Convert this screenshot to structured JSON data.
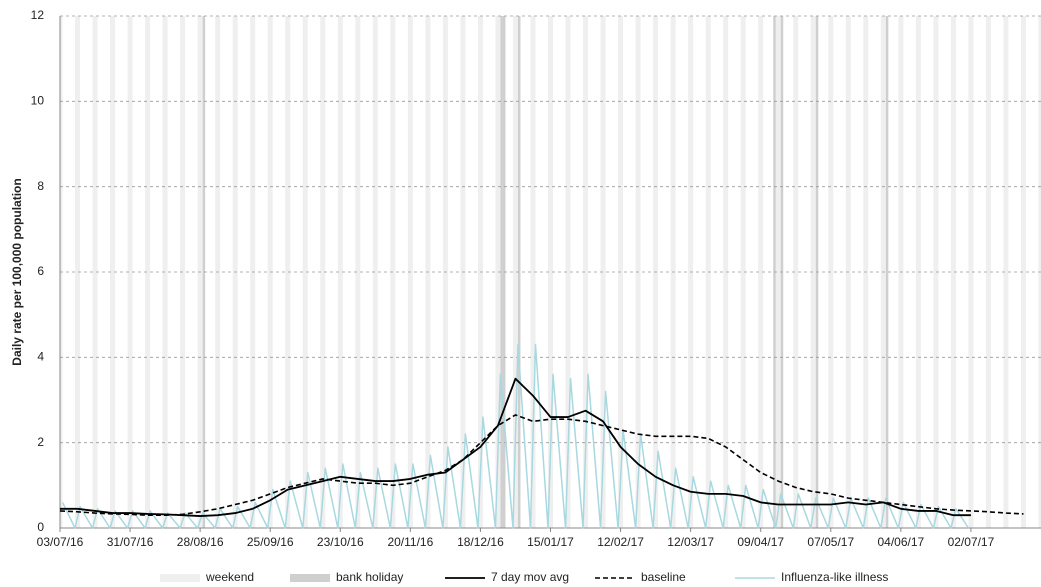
{
  "chart_data": {
    "type": "line",
    "y_label": "Daily rate per 100,000  population",
    "xlim": [
      "03/07/16",
      "30/07/17"
    ],
    "xticks": [
      "03/07/16",
      "31/07/16",
      "28/08/16",
      "25/09/16",
      "23/10/16",
      "20/11/16",
      "18/12/16",
      "15/01/17",
      "12/02/17",
      "12/03/17",
      "09/04/17",
      "07/05/17",
      "04/06/17",
      "02/07/17"
    ],
    "ylim": [
      0,
      12
    ],
    "yticks": [
      0,
      2,
      4,
      6,
      8,
      10,
      12
    ],
    "grid": true,
    "bands": {
      "weekend": {
        "name": "weekend",
        "color": "#efefef"
      },
      "bank_holiday": {
        "name": "bank holiday",
        "color": "#cfcfcf",
        "dates": [
          "29/08/16",
          "26/12/16",
          "27/12/16",
          "02/01/17",
          "14/04/17",
          "17/04/17",
          "01/05/17",
          "29/05/17"
        ]
      }
    },
    "x": [
      "03/07/16",
      "10/07/16",
      "17/07/16",
      "24/07/16",
      "31/07/16",
      "07/08/16",
      "14/08/16",
      "21/08/16",
      "28/08/16",
      "04/09/16",
      "11/09/16",
      "18/09/16",
      "25/09/16",
      "02/10/16",
      "09/10/16",
      "16/10/16",
      "23/10/16",
      "30/10/16",
      "06/11/16",
      "13/11/16",
      "20/11/16",
      "27/11/16",
      "04/12/16",
      "11/12/16",
      "18/12/16",
      "25/12/16",
      "01/01/17",
      "08/01/17",
      "15/01/17",
      "22/01/17",
      "29/01/17",
      "05/02/17",
      "12/02/17",
      "19/02/17",
      "26/02/17",
      "05/03/17",
      "12/03/17",
      "19/03/17",
      "26/03/17",
      "02/04/17",
      "09/04/17",
      "16/04/17",
      "23/04/17",
      "30/04/17",
      "07/05/17",
      "14/05/17",
      "21/05/17",
      "28/05/17",
      "04/06/17",
      "11/06/17",
      "18/06/17",
      "25/06/17",
      "02/07/17",
      "09/07/17",
      "16/07/17",
      "23/07/17"
    ],
    "series": [
      {
        "name": "Influenza-like illness",
        "color": "#a8d8e0",
        "style": "solid",
        "width": 1.5,
        "x": [
          "04/07/16",
          "09/07/16",
          "11/07/16",
          "16/07/16",
          "18/07/16",
          "23/07/16",
          "25/07/16",
          "30/07/16",
          "01/08/16",
          "06/08/16",
          "08/08/16",
          "13/08/16",
          "15/08/16",
          "20/08/16",
          "22/08/16",
          "27/08/16",
          "29/08/16",
          "03/09/16",
          "05/09/16",
          "10/09/16",
          "12/09/16",
          "17/09/16",
          "19/09/16",
          "24/09/16",
          "26/09/16",
          "01/10/16",
          "03/10/16",
          "08/10/16",
          "10/10/16",
          "15/10/16",
          "17/10/16",
          "22/10/16",
          "24/10/16",
          "29/10/16",
          "31/10/16",
          "05/11/16",
          "07/11/16",
          "12/11/16",
          "14/11/16",
          "19/11/16",
          "21/11/16",
          "26/11/16",
          "28/11/16",
          "03/12/16",
          "05/12/16",
          "10/12/16",
          "12/12/16",
          "17/12/16",
          "19/12/16",
          "24/12/16",
          "26/12/16",
          "31/12/16",
          "02/01/17",
          "07/01/17",
          "09/01/17",
          "14/01/17",
          "16/01/17",
          "21/01/17",
          "23/01/17",
          "28/01/17",
          "30/01/17",
          "04/02/17",
          "06/02/17",
          "11/02/17",
          "13/02/17",
          "18/02/17",
          "20/02/17",
          "25/02/17",
          "27/02/17",
          "04/03/17",
          "06/03/17",
          "11/03/17",
          "13/03/17",
          "18/03/17",
          "20/03/17",
          "25/03/17",
          "27/03/17",
          "01/04/17",
          "03/04/17",
          "08/04/17",
          "10/04/17",
          "15/04/17",
          "17/04/17",
          "22/04/17",
          "24/04/17",
          "29/04/17",
          "01/05/17",
          "06/05/17",
          "08/05/17",
          "13/05/17",
          "15/05/17",
          "20/05/17",
          "22/05/17",
          "27/05/17",
          "29/05/17",
          "03/06/17",
          "05/06/17",
          "10/06/17",
          "12/06/17",
          "17/06/17",
          "19/06/17",
          "24/06/17",
          "26/06/17",
          "01/07/17"
        ],
        "values": [
          0.6,
          0,
          0.5,
          0,
          0.45,
          0,
          0.4,
          0,
          0.4,
          0,
          0.4,
          0,
          0.35,
          0,
          0.35,
          0,
          0.35,
          0,
          0.45,
          0,
          0.5,
          0,
          0.6,
          0,
          0.9,
          0,
          1.1,
          0,
          1.3,
          0,
          1.4,
          0,
          1.5,
          0,
          1.3,
          0,
          1.4,
          0,
          1.5,
          0,
          1.5,
          0,
          1.7,
          0,
          1.9,
          0,
          2.2,
          0,
          2.6,
          0,
          3.6,
          0,
          4.3,
          0,
          4.3,
          0,
          3.6,
          0,
          3.5,
          0,
          3.6,
          0,
          3.2,
          0,
          2.3,
          0,
          2.2,
          0,
          1.8,
          0,
          1.4,
          0,
          1.2,
          0,
          1.1,
          0,
          1.0,
          0,
          1.0,
          0,
          0.9,
          0,
          0.8,
          0,
          0.8,
          0,
          0.7,
          0,
          0.7,
          0,
          0.7,
          0,
          0.7,
          0,
          0.7,
          0,
          0.6,
          0,
          0.55,
          0,
          0.5,
          0,
          0.45,
          0
        ]
      },
      {
        "name": "baseline",
        "color": "#000000",
        "style": "dashed",
        "width": 1.6,
        "values": [
          0.4,
          0.38,
          0.35,
          0.33,
          0.32,
          0.3,
          0.3,
          0.32,
          0.38,
          0.45,
          0.55,
          0.65,
          0.8,
          0.95,
          1.05,
          1.15,
          1.1,
          1.05,
          1.05,
          1.0,
          1.05,
          1.2,
          1.35,
          1.6,
          2.0,
          2.4,
          2.65,
          2.5,
          2.55,
          2.55,
          2.5,
          2.4,
          2.3,
          2.2,
          2.15,
          2.15,
          2.15,
          2.1,
          1.9,
          1.6,
          1.3,
          1.1,
          0.95,
          0.85,
          0.8,
          0.7,
          0.65,
          0.6,
          0.55,
          0.5,
          0.45,
          0.42,
          0.4,
          0.38,
          0.35,
          0.33
        ]
      },
      {
        "name": "7 day mov avg",
        "color": "#000000",
        "style": "solid",
        "width": 1.8,
        "values": [
          0.45,
          0.45,
          0.4,
          0.35,
          0.35,
          0.33,
          0.32,
          0.3,
          0.28,
          0.3,
          0.35,
          0.45,
          0.65,
          0.9,
          1.0,
          1.1,
          1.2,
          1.15,
          1.1,
          1.1,
          1.15,
          1.25,
          1.3,
          1.6,
          1.9,
          2.4,
          3.5,
          3.1,
          2.6,
          2.6,
          2.75,
          2.5,
          1.9,
          1.5,
          1.2,
          1.0,
          0.85,
          0.8,
          0.8,
          0.75,
          0.6,
          0.55,
          0.55,
          0.55,
          0.55,
          0.6,
          0.55,
          0.6,
          0.45,
          0.4,
          0.4,
          0.3,
          0.3,
          null,
          null,
          null
        ]
      }
    ]
  }
}
